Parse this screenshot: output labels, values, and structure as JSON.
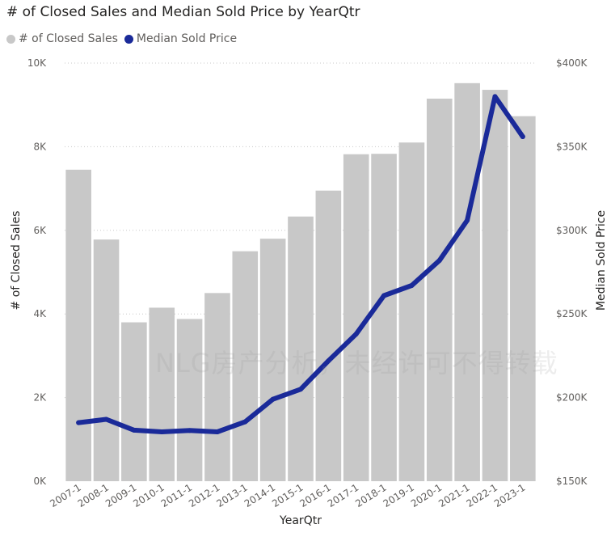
{
  "chart_data": {
    "type": "bar",
    "title": "# of Closed Sales and Median Sold Price by YearQtr",
    "xlabel": "YearQtr",
    "ylabel": "# of Closed Sales",
    "ylabel_right": "Median Sold Price",
    "categories": [
      "2007-1",
      "2008-1",
      "2009-1",
      "2010-1",
      "2011-1",
      "2012-1",
      "2013-1",
      "2014-1",
      "2015-1",
      "2016-1",
      "2017-1",
      "2018-1",
      "2019-1",
      "2020-1",
      "2021-1",
      "2022-1",
      "2023-1"
    ],
    "series": [
      {
        "name": "# of Closed Sales",
        "type": "bar",
        "axis": "left",
        "color": "#c8c8c8",
        "values": [
          7450,
          5780,
          3800,
          4150,
          3880,
          4500,
          5500,
          5800,
          6330,
          6950,
          7820,
          7830,
          8100,
          9150,
          9520,
          9360,
          8730
        ]
      },
      {
        "name": "Median Sold Price",
        "type": "line",
        "axis": "right",
        "color": "#1a2a99",
        "values": [
          185000,
          187000,
          180500,
          179500,
          180300,
          179500,
          185500,
          199000,
          205000,
          222000,
          238000,
          261000,
          267000,
          282000,
          306000,
          380000,
          356000
        ]
      }
    ],
    "ylim": [
      0,
      10000
    ],
    "ylim_right": [
      150000,
      400000
    ],
    "y_ticks": [
      "0K",
      "2K",
      "4K",
      "6K",
      "8K",
      "10K"
    ],
    "y_tick_values": [
      0,
      2000,
      4000,
      6000,
      8000,
      10000
    ],
    "y_right_ticks": [
      "$150K",
      "$200K",
      "$250K",
      "$300K",
      "$350K",
      "$400K"
    ],
    "y_right_tick_values": [
      150000,
      200000,
      250000,
      300000,
      350000,
      400000
    ],
    "grid": true,
    "legend": "top-left"
  },
  "watermark": "NLG房产分析，未经许可不得转载"
}
